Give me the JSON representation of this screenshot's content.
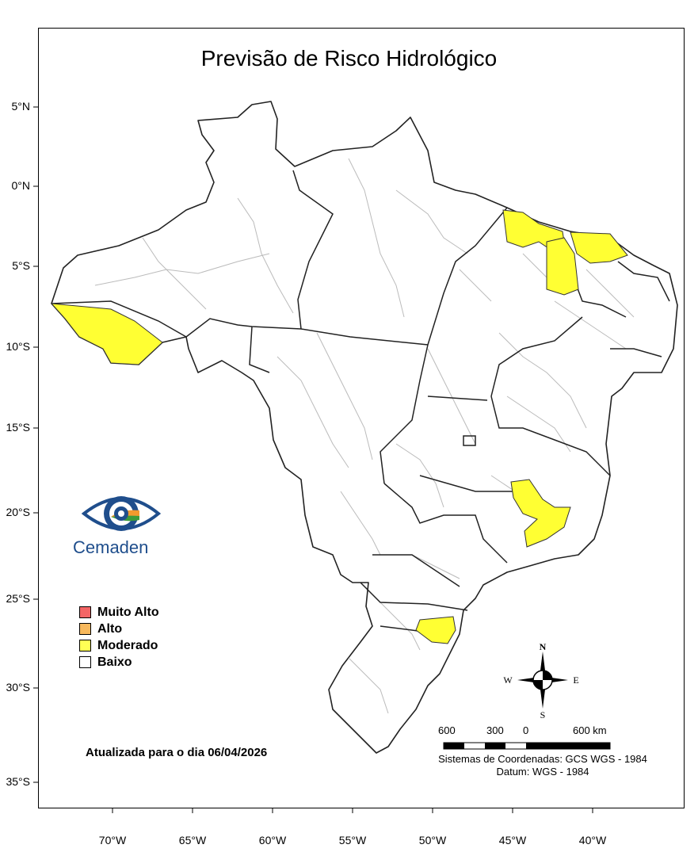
{
  "title": "Previsão de Risco Hidrológico",
  "y_axis_labels": [
    "5°N",
    "0°N",
    "5°S",
    "10°S",
    "15°S",
    "20°S",
    "25°S",
    "30°S",
    "35°S"
  ],
  "x_axis_labels": [
    "70°W",
    "65°W",
    "60°W",
    "55°W",
    "50°W",
    "45°W",
    "40°W"
  ],
  "legend": [
    {
      "label": "Muito Alto",
      "color": "#f36565"
    },
    {
      "label": "Alto",
      "color": "#f7b85c"
    },
    {
      "label": "Moderado",
      "color": "#ffff55"
    },
    {
      "label": "Baixo",
      "color": "#ffffff"
    }
  ],
  "updated": "Atualizada para o dia 06/04/2026",
  "logo_text": "Cemaden",
  "scale": {
    "labels": [
      "600",
      "300",
      "0",
      "600 km"
    ]
  },
  "coordinate_system": "Sistemas de Coordenadas: GCS WGS - 1984",
  "datum": "Datum: WGS - 1984",
  "compass": {
    "n": "N",
    "s": "S",
    "e": "E",
    "w": "W"
  },
  "colors": {
    "moderate": "#ffff33",
    "state_border": "#222222",
    "municipal_border": "#bbbbbb",
    "logo_blue": "#1f4e8c"
  }
}
